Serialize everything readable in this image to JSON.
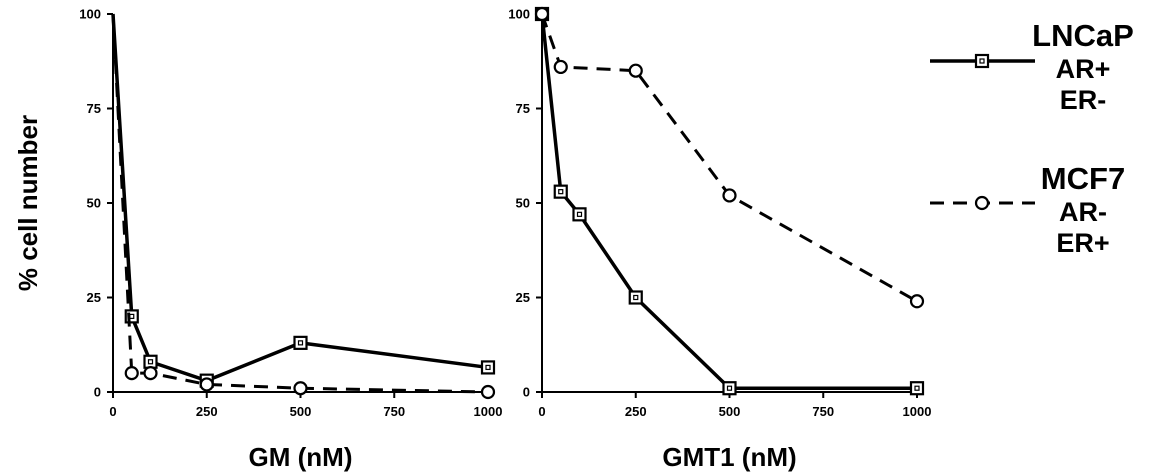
{
  "chart_data": [
    {
      "type": "line",
      "xlabel": "GM (nM)",
      "ylabel": "% cell number",
      "xlim": [
        0,
        1000
      ],
      "ylim": [
        0,
        100
      ],
      "xticks": [
        "0",
        "250",
        "500",
        "750",
        "1000"
      ],
      "yticks": [
        "0",
        "25",
        "50",
        "75",
        "100"
      ],
      "series": [
        {
          "name": "LNCaP",
          "marker": "square",
          "line_style": "solid",
          "x": [
            0,
            50,
            100,
            250,
            500,
            1000
          ],
          "y": [
            100,
            20,
            8,
            3,
            13,
            6.5
          ]
        },
        {
          "name": "MCF7",
          "marker": "circle",
          "line_style": "dashed",
          "x": [
            0,
            50,
            100,
            250,
            500,
            1000
          ],
          "y": [
            100,
            5,
            5,
            2,
            1,
            0
          ]
        }
      ]
    },
    {
      "type": "line",
      "xlabel": "GMT1 (nM)",
      "ylabel": "",
      "xlim": [
        0,
        1000
      ],
      "ylim": [
        0,
        100
      ],
      "xticks": [
        "0",
        "250",
        "500",
        "750",
        "1000"
      ],
      "yticks": [
        "0",
        "25",
        "50",
        "75",
        "100"
      ],
      "series": [
        {
          "name": "LNCaP",
          "marker": "square",
          "line_style": "solid",
          "x": [
            0,
            50,
            100,
            250,
            500,
            1000
          ],
          "y": [
            100,
            53,
            47,
            25,
            1,
            1
          ]
        },
        {
          "name": "MCF7",
          "marker": "circle",
          "line_style": "dashed",
          "x": [
            0,
            50,
            250,
            500,
            1000
          ],
          "y": [
            100,
            86,
            85,
            52,
            24
          ]
        }
      ]
    }
  ],
  "legend": {
    "placement": "right",
    "entries": [
      {
        "series": "LNCaP",
        "title": "LNCaP",
        "lines": [
          "AR+",
          "ER-"
        ],
        "marker": "square",
        "line_style": "solid"
      },
      {
        "series": "MCF7",
        "title": "MCF7",
        "lines": [
          "AR-",
          "ER+"
        ],
        "marker": "circle",
        "line_style": "dashed"
      }
    ]
  }
}
